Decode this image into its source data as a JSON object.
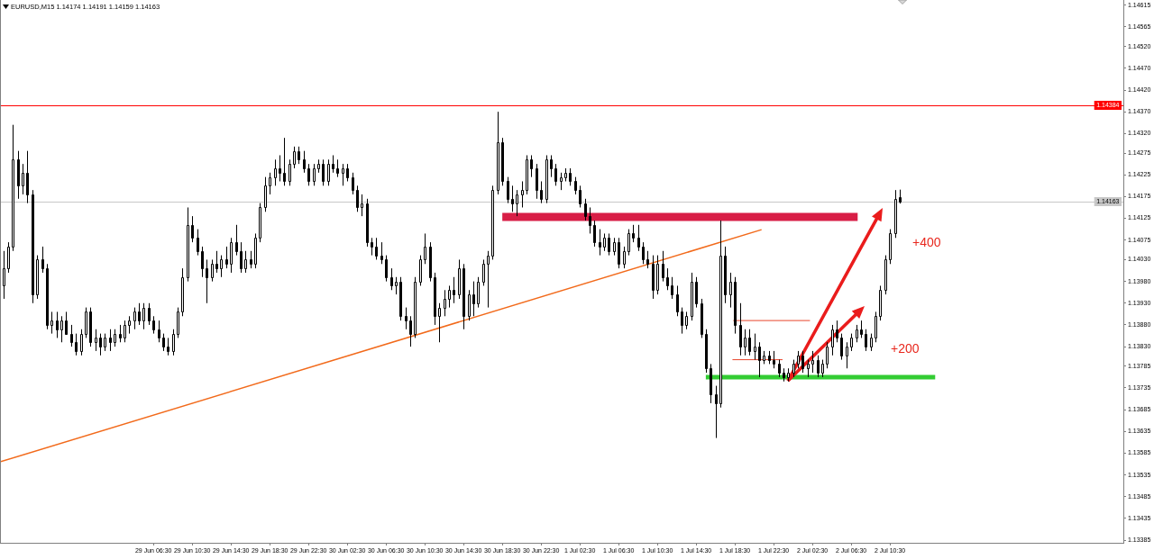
{
  "chart_data": {
    "type": "candlestick",
    "title": "EURUSD,M15 1.14174 1.14191 1.14159 1.14163",
    "color": "#000000",
    "x": [
      "--06-28T15:00",
      "--06-28T15:30",
      "--06-28T16:00",
      "--06-28T16:30",
      "--06-28T17:00",
      "--06-28T17:30",
      "--06-28T18:00",
      "--06-28T18:30",
      "--06-28T19:00",
      "--06-28T19:30",
      "--06-28T20:00",
      "--06-28T20:30",
      "--06-28T21:00",
      "--06-28T21:30",
      "--06-28T22:00",
      "--06-28T22:30",
      "--06-28T23:00",
      "--06-28T23:30",
      "--06-29T00:00",
      "--06-29T00:30",
      "--06-29T01:00",
      "--06-29T01:30",
      "--06-29T02:00",
      "--06-29T02:30",
      "--06-29T03:00",
      "--06-29T03:30",
      "--06-29T04:00",
      "--06-29T04:30",
      "--06-29T05:00",
      "--06-29T05:30",
      "--06-29T06:00",
      "--06-29T06:30",
      "--06-29T07:00",
      "--06-29T07:30",
      "--06-29T08:00",
      "--06-29T08:30",
      "--06-29T09:00",
      "--06-29T09:30",
      "--06-29T10:00",
      "--06-29T10:30",
      "--06-29T11:00",
      "--06-29T11:30",
      "--06-29T12:00",
      "--06-29T12:30",
      "--06-29T13:00",
      "--06-29T13:30",
      "--06-29T14:00",
      "--06-29T14:30",
      "--06-29T15:00",
      "--06-29T15:30",
      "--06-29T16:00",
      "--06-29T16:30",
      "--06-29T17:00",
      "--06-29T17:30",
      "--06-29T18:00",
      "--06-29T18:30",
      "--06-29T19:00",
      "--06-29T19:30",
      "--06-29T20:00",
      "--06-29T20:30",
      "--06-29T21:00",
      "--06-29T21:30",
      "--06-29T22:00",
      "--06-29T22:30",
      "--06-29T23:00",
      "--06-29T23:30",
      "--06-30T00:00",
      "--06-30T00:30",
      "--06-30T01:00",
      "--06-30T01:30",
      "--06-30T02:00",
      "--06-30T02:30",
      "--06-30T03:00",
      "--06-30T03:30",
      "--06-30T04:00",
      "--06-30T04:30",
      "--06-30T05:00",
      "--06-30T05:30",
      "--06-30T06:00",
      "--06-30T06:30",
      "--06-30T07:00",
      "--06-30T07:30",
      "--06-30T08:00",
      "--06-30T08:30",
      "--06-30T09:00",
      "--06-30T09:30",
      "--06-30T10:00",
      "--06-30T10:30",
      "--06-30T11:00",
      "--06-30T11:30",
      "--06-30T12:00",
      "--06-30T12:30",
      "--06-30T13:00",
      "--06-30T13:30",
      "--06-30T14:00",
      "--06-30T14:30",
      "--06-30T15:00",
      "--06-30T15:30",
      "--06-30T16:00",
      "--06-30T16:30",
      "--06-30T17:00",
      "--06-30T17:30",
      "--06-30T18:00",
      "--06-30T18:30",
      "--06-30T19:00",
      "--06-30T19:30",
      "--06-30T20:00",
      "--06-30T20:30",
      "--06-30T21:00",
      "--06-30T21:30",
      "--06-30T22:00",
      "--06-30T22:30",
      "--06-30T23:00",
      "--06-30T23:30",
      "--07-01T00:00",
      "--07-01T00:30",
      "--07-01T01:00",
      "--07-01T01:30",
      "--07-01T02:00",
      "--07-01T02:30",
      "--07-01T03:00",
      "--07-01T03:30",
      "--07-01T04:00",
      "--07-01T04:30",
      "--07-01T05:00",
      "--07-01T05:30",
      "--07-01T06:00",
      "--07-01T06:30",
      "--07-01T07:00",
      "--07-01T07:30",
      "--07-01T08:00",
      "--07-01T08:30",
      "--07-01T09:00",
      "--07-01T09:30",
      "--07-01T10:00",
      "--07-01T10:30",
      "--07-01T11:00",
      "--07-01T11:30",
      "--07-01T12:00",
      "--07-01T12:30",
      "--07-01T13:00",
      "--07-01T13:30",
      "--07-01T14:00",
      "--07-01T14:30",
      "--07-01T15:00",
      "--07-01T15:30",
      "--07-01T16:00",
      "--07-01T16:30",
      "--07-01T17:00",
      "--07-01T17:30",
      "--07-01T18:00",
      "--07-01T18:30",
      "--07-01T19:00",
      "--07-01T19:30",
      "--07-01T20:00",
      "--07-01T20:30",
      "--07-01T21:00",
      "--07-01T21:30",
      "--07-01T22:00",
      "--07-01T22:30",
      "--07-01T23:00",
      "--07-01T23:30",
      "--07-02T00:00",
      "--07-02T00:30",
      "--07-02T01:00",
      "--07-02T01:30",
      "--07-02T02:00",
      "--07-02T02:30",
      "--07-02T03:00",
      "--07-02T03:30",
      "--07-02T04:00",
      "--07-02T04:30",
      "--07-02T05:00",
      "--07-02T05:30",
      "--07-02T06:00",
      "--07-02T06:30",
      "--07-02T07:00",
      "--07-02T07:30",
      "--07-02T08:00",
      "--07-02T08:30",
      "--07-02T09:00",
      "--07-02T09:30",
      "--07-02T10:00",
      "--07-02T10:30",
      "--07-02T11:00",
      "--07-02T11:30"
    ],
    "ohlc": [
      [
        1.1397,
        1.1405,
        1.1394,
        1.1401
      ],
      [
        1.1401,
        1.1407,
        1.14,
        1.1406
      ],
      [
        1.1406,
        1.1434,
        1.1405,
        1.1426
      ],
      [
        1.1426,
        1.1428,
        1.1417,
        1.142
      ],
      [
        1.142,
        1.1425,
        1.1418,
        1.1423
      ],
      [
        1.1423,
        1.1428,
        1.1416,
        1.1418
      ],
      [
        1.1418,
        1.1419,
        1.1393,
        1.1395
      ],
      [
        1.1395,
        1.1404,
        1.1394,
        1.1403
      ],
      [
        1.1403,
        1.1406,
        1.14,
        1.1401
      ],
      [
        1.1401,
        1.1402,
        1.1387,
        1.1388
      ],
      [
        1.1388,
        1.1391,
        1.1386,
        1.1389
      ],
      [
        1.1389,
        1.1391,
        1.1385,
        1.1387
      ],
      [
        1.1387,
        1.139,
        1.1384,
        1.1389
      ],
      [
        1.1389,
        1.1391,
        1.1386,
        1.1386
      ],
      [
        1.1386,
        1.1388,
        1.1383,
        1.1384
      ],
      [
        1.1384,
        1.1386,
        1.1381,
        1.1382
      ],
      [
        1.1382,
        1.1387,
        1.1381,
        1.1386
      ],
      [
        1.1386,
        1.1392,
        1.1385,
        1.1391
      ],
      [
        1.1391,
        1.1392,
        1.1383,
        1.1384
      ],
      [
        1.1384,
        1.1387,
        1.1382,
        1.1385
      ],
      [
        1.1385,
        1.1386,
        1.1381,
        1.1383
      ],
      [
        1.1383,
        1.1386,
        1.1382,
        1.1385
      ],
      [
        1.1385,
        1.1387,
        1.1382,
        1.1384
      ],
      [
        1.1384,
        1.1387,
        1.1383,
        1.1386
      ],
      [
        1.1386,
        1.1388,
        1.1384,
        1.1385
      ],
      [
        1.1385,
        1.1389,
        1.1384,
        1.1388
      ],
      [
        1.1388,
        1.139,
        1.1386,
        1.1389
      ],
      [
        1.1389,
        1.1392,
        1.1387,
        1.1391
      ],
      [
        1.1391,
        1.1393,
        1.1388,
        1.1389
      ],
      [
        1.1389,
        1.1393,
        1.1387,
        1.1392
      ],
      [
        1.1392,
        1.1393,
        1.1388,
        1.1389
      ],
      [
        1.1389,
        1.139,
        1.1386,
        1.1387
      ],
      [
        1.1387,
        1.1389,
        1.1384,
        1.1385
      ],
      [
        1.1385,
        1.1386,
        1.1382,
        1.1383
      ],
      [
        1.1383,
        1.1385,
        1.1381,
        1.1382
      ],
      [
        1.1382,
        1.1387,
        1.1381,
        1.1386
      ],
      [
        1.1386,
        1.1392,
        1.1385,
        1.1391
      ],
      [
        1.1391,
        1.1401,
        1.139,
        1.1399
      ],
      [
        1.1399,
        1.1415,
        1.1398,
        1.1411
      ],
      [
        1.1411,
        1.1413,
        1.1407,
        1.1408
      ],
      [
        1.1408,
        1.141,
        1.1404,
        1.1405
      ],
      [
        1.1405,
        1.1406,
        1.1399,
        1.1401
      ],
      [
        1.1401,
        1.1403,
        1.1393,
        1.1399
      ],
      [
        1.1399,
        1.1403,
        1.1398,
        1.1402
      ],
      [
        1.1402,
        1.1405,
        1.14,
        1.1401
      ],
      [
        1.1401,
        1.1404,
        1.1399,
        1.1403
      ],
      [
        1.1403,
        1.1406,
        1.1401,
        1.1402
      ],
      [
        1.1402,
        1.1408,
        1.14,
        1.1407
      ],
      [
        1.1407,
        1.1411,
        1.1404,
        1.1405
      ],
      [
        1.1405,
        1.1407,
        1.14,
        1.1401
      ],
      [
        1.1401,
        1.1405,
        1.14,
        1.1403
      ],
      [
        1.1403,
        1.1405,
        1.1401,
        1.1402
      ],
      [
        1.1402,
        1.1409,
        1.1401,
        1.1408
      ],
      [
        1.1408,
        1.1416,
        1.1407,
        1.1415
      ],
      [
        1.1415,
        1.1422,
        1.1414,
        1.142
      ],
      [
        1.142,
        1.1423,
        1.1418,
        1.1422
      ],
      [
        1.1422,
        1.1426,
        1.142,
        1.1424
      ],
      [
        1.1424,
        1.1427,
        1.1421,
        1.1423
      ],
      [
        1.1423,
        1.1431,
        1.142,
        1.1421
      ],
      [
        1.1421,
        1.1426,
        1.142,
        1.1425
      ],
      [
        1.1425,
        1.1429,
        1.1424,
        1.1428
      ],
      [
        1.1428,
        1.1429,
        1.1425,
        1.1426
      ],
      [
        1.1426,
        1.1428,
        1.1423,
        1.1424
      ],
      [
        1.1424,
        1.1425,
        1.142,
        1.1421
      ],
      [
        1.1421,
        1.1425,
        1.142,
        1.1424
      ],
      [
        1.1424,
        1.1426,
        1.1423,
        1.1425
      ],
      [
        1.1425,
        1.1426,
        1.142,
        1.1421
      ],
      [
        1.1421,
        1.1426,
        1.142,
        1.1425
      ],
      [
        1.1425,
        1.1427,
        1.1423,
        1.1424
      ],
      [
        1.1424,
        1.1426,
        1.1422,
        1.1423
      ],
      [
        1.1423,
        1.1425,
        1.142,
        1.1424
      ],
      [
        1.1424,
        1.1425,
        1.1421,
        1.1422
      ],
      [
        1.1422,
        1.1423,
        1.1418,
        1.1419
      ],
      [
        1.1419,
        1.142,
        1.1414,
        1.1415
      ],
      [
        1.1415,
        1.1418,
        1.1413,
        1.1416
      ],
      [
        1.1416,
        1.1417,
        1.1406,
        1.1407
      ],
      [
        1.1407,
        1.1408,
        1.1404,
        1.1406
      ],
      [
        1.1406,
        1.1408,
        1.1403,
        1.1404
      ],
      [
        1.1404,
        1.1407,
        1.1402,
        1.1403
      ],
      [
        1.1403,
        1.1404,
        1.1398,
        1.1399
      ],
      [
        1.1399,
        1.1401,
        1.1396,
        1.1397
      ],
      [
        1.1397,
        1.1399,
        1.1395,
        1.1398
      ],
      [
        1.1398,
        1.1399,
        1.1389,
        1.139
      ],
      [
        1.139,
        1.1392,
        1.1387,
        1.1389
      ],
      [
        1.1389,
        1.139,
        1.1383,
        1.1386
      ],
      [
        1.1386,
        1.1399,
        1.1385,
        1.1398
      ],
      [
        1.1398,
        1.1404,
        1.1397,
        1.1403
      ],
      [
        1.1403,
        1.1409,
        1.1402,
        1.1406
      ],
      [
        1.1406,
        1.1407,
        1.1398,
        1.1399
      ],
      [
        1.1399,
        1.14,
        1.1388,
        1.139
      ],
      [
        1.139,
        1.1393,
        1.1384,
        1.1392
      ],
      [
        1.1392,
        1.1396,
        1.139,
        1.1394
      ],
      [
        1.1394,
        1.1397,
        1.1392,
        1.1396
      ],
      [
        1.1396,
        1.1399,
        1.1393,
        1.1395
      ],
      [
        1.1395,
        1.1403,
        1.1394,
        1.1401
      ],
      [
        1.1401,
        1.1402,
        1.1387,
        1.139
      ],
      [
        1.139,
        1.1396,
        1.1389,
        1.1395
      ],
      [
        1.1395,
        1.1398,
        1.139,
        1.1393
      ],
      [
        1.1393,
        1.1399,
        1.1392,
        1.1398
      ],
      [
        1.1398,
        1.1403,
        1.1397,
        1.1402
      ],
      [
        1.1402,
        1.1405,
        1.1392,
        1.1404
      ],
      [
        1.1404,
        1.142,
        1.1403,
        1.1419
      ],
      [
        1.1419,
        1.1437,
        1.1418,
        1.143
      ],
      [
        1.143,
        1.1431,
        1.142,
        1.1421
      ],
      [
        1.1421,
        1.1422,
        1.1416,
        1.1417
      ],
      [
        1.1417,
        1.142,
        1.1414,
        1.1416
      ],
      [
        1.1416,
        1.1419,
        1.1413,
        1.1418
      ],
      [
        1.1418,
        1.1421,
        1.1415,
        1.1419
      ],
      [
        1.1419,
        1.1427,
        1.1418,
        1.1426
      ],
      [
        1.1426,
        1.1427,
        1.1422,
        1.1424
      ],
      [
        1.1424,
        1.1425,
        1.1417,
        1.1419
      ],
      [
        1.1419,
        1.1421,
        1.1416,
        1.1417
      ],
      [
        1.1417,
        1.1427,
        1.1416,
        1.1426
      ],
      [
        1.1426,
        1.1427,
        1.1422,
        1.1424
      ],
      [
        1.1424,
        1.1425,
        1.142,
        1.1421
      ],
      [
        1.1421,
        1.1423,
        1.1419,
        1.1422
      ],
      [
        1.1422,
        1.1424,
        1.1421,
        1.1423
      ],
      [
        1.1423,
        1.1424,
        1.142,
        1.1421
      ],
      [
        1.1421,
        1.1422,
        1.1418,
        1.1419
      ],
      [
        1.1419,
        1.142,
        1.1415,
        1.1416
      ],
      [
        1.1416,
        1.1417,
        1.1412,
        1.1413
      ],
      [
        1.1413,
        1.1415,
        1.1409,
        1.1411
      ],
      [
        1.1411,
        1.1412,
        1.1406,
        1.1407
      ],
      [
        1.1407,
        1.141,
        1.1404,
        1.1406
      ],
      [
        1.1406,
        1.1409,
        1.1405,
        1.1408
      ],
      [
        1.1408,
        1.1409,
        1.1404,
        1.1405
      ],
      [
        1.1405,
        1.1408,
        1.1404,
        1.1407
      ],
      [
        1.1407,
        1.1408,
        1.1401,
        1.1402
      ],
      [
        1.1402,
        1.1406,
        1.1401,
        1.1405
      ],
      [
        1.1405,
        1.141,
        1.1404,
        1.1409
      ],
      [
        1.1409,
        1.1411,
        1.1407,
        1.1408
      ],
      [
        1.1408,
        1.1411,
        1.1405,
        1.1406
      ],
      [
        1.1406,
        1.1407,
        1.1402,
        1.1403
      ],
      [
        1.1403,
        1.1405,
        1.1401,
        1.1402
      ],
      [
        1.1402,
        1.1404,
        1.1394,
        1.1396
      ],
      [
        1.1396,
        1.1404,
        1.1395,
        1.1402
      ],
      [
        1.1402,
        1.1405,
        1.1398,
        1.1399
      ],
      [
        1.1399,
        1.1401,
        1.1396,
        1.1397
      ],
      [
        1.1397,
        1.1399,
        1.1394,
        1.1395
      ],
      [
        1.1395,
        1.1397,
        1.139,
        1.1391
      ],
      [
        1.1391,
        1.1392,
        1.1386,
        1.1388
      ],
      [
        1.1388,
        1.1391,
        1.1387,
        1.139
      ],
      [
        1.139,
        1.14,
        1.1389,
        1.1398
      ],
      [
        1.1398,
        1.1399,
        1.1392,
        1.1393
      ],
      [
        1.1393,
        1.1394,
        1.1385,
        1.1386
      ],
      [
        1.1386,
        1.1387,
        1.1377,
        1.1378
      ],
      [
        1.1378,
        1.1379,
        1.137,
        1.1372
      ],
      [
        1.1372,
        1.1374,
        1.1362,
        1.137
      ],
      [
        1.137,
        1.1412,
        1.1369,
        1.1404
      ],
      [
        1.1404,
        1.1406,
        1.1393,
        1.1395
      ],
      [
        1.1395,
        1.14,
        1.1392,
        1.1398
      ],
      [
        1.1398,
        1.1399,
        1.1386,
        1.1388
      ],
      [
        1.1388,
        1.1393,
        1.1381,
        1.1383
      ],
      [
        1.1383,
        1.1387,
        1.1381,
        1.1385
      ],
      [
        1.1385,
        1.1387,
        1.1381,
        1.1382
      ],
      [
        1.1382,
        1.1386,
        1.138,
        1.1383
      ],
      [
        1.1383,
        1.1384,
        1.1376,
        1.138
      ],
      [
        1.138,
        1.1382,
        1.1379,
        1.1381
      ],
      [
        1.1381,
        1.1382,
        1.1379,
        1.138
      ],
      [
        1.138,
        1.1382,
        1.1378,
        1.1379
      ],
      [
        1.1379,
        1.138,
        1.1376,
        1.1377
      ],
      [
        1.1377,
        1.1378,
        1.1375,
        1.1376
      ],
      [
        1.1376,
        1.1378,
        1.1375,
        1.1377
      ],
      [
        1.1377,
        1.138,
        1.1376,
        1.1379
      ],
      [
        1.1379,
        1.1382,
        1.1378,
        1.1381
      ],
      [
        1.1381,
        1.1382,
        1.1377,
        1.1378
      ],
      [
        1.1378,
        1.138,
        1.1376,
        1.1379
      ],
      [
        1.1379,
        1.1382,
        1.1377,
        1.138
      ],
      [
        1.138,
        1.1381,
        1.1376,
        1.1377
      ],
      [
        1.1377,
        1.138,
        1.1376,
        1.1379
      ],
      [
        1.1379,
        1.1384,
        1.1378,
        1.1383
      ],
      [
        1.1383,
        1.1388,
        1.1381,
        1.1387
      ],
      [
        1.1387,
        1.1389,
        1.1384,
        1.1385
      ],
      [
        1.1385,
        1.1386,
        1.138,
        1.1381
      ],
      [
        1.1381,
        1.1384,
        1.1378,
        1.1383
      ],
      [
        1.1383,
        1.1386,
        1.1382,
        1.1385
      ],
      [
        1.1385,
        1.1388,
        1.1384,
        1.1387
      ],
      [
        1.1387,
        1.1389,
        1.1385,
        1.1386
      ],
      [
        1.1386,
        1.1387,
        1.1382,
        1.1383
      ],
      [
        1.1383,
        1.1386,
        1.1382,
        1.1385
      ],
      [
        1.1385,
        1.1391,
        1.1384,
        1.139
      ],
      [
        1.139,
        1.1397,
        1.1389,
        1.1396
      ],
      [
        1.1396,
        1.1404,
        1.1395,
        1.1403
      ],
      [
        1.1403,
        1.141,
        1.1402,
        1.1409
      ],
      [
        1.1409,
        1.1419,
        1.1408,
        1.1417
      ],
      [
        1.14174,
        1.14191,
        1.14159,
        1.14163
      ]
    ],
    "series": [
      {
        "type": "line",
        "color": "#f26a1b",
        "x": [
          "--06-28T14:40",
          "--07-01T21:15"
        ],
        "values": [
          1.13565,
          1.14099
        ]
      },
      {
        "type": "line",
        "color": "#d81e46",
        "x": [
          "--06-30T18:30",
          "--07-02T07:10"
        ],
        "values": [
          1.14128,
          1.14128
        ]
      },
      {
        "type": "line",
        "color": "#33cc33",
        "x": [
          "--07-01T15:30",
          "--07-02T15:10"
        ],
        "values": [
          1.1376,
          1.1376
        ]
      },
      {
        "type": "line",
        "color": "#e8452c",
        "x": [
          "--07-01T18:20",
          "--07-02T02:15"
        ],
        "values": [
          1.1389,
          1.1389
        ]
      },
      {
        "type": "line",
        "color": "#e8452c",
        "x": [
          "--07-01T18:15",
          "--07-01T23:25"
        ],
        "values": [
          1.138,
          1.138
        ]
      }
    ],
    "xlim": [
      "--06-28T14:40",
      "--07-03T10:35"
    ],
    "xticks": [
      {
        "value": "--06-29T06:30",
        "label": "29 Jun 06:30"
      },
      {
        "value": "--06-29T10:30",
        "label": "29 Jun 10:30"
      },
      {
        "value": "--06-29T14:30",
        "label": "29 Jun 14:30"
      },
      {
        "value": "--06-29T18:30",
        "label": "29 Jun 18:30"
      },
      {
        "value": "--06-29T22:30",
        "label": "29 Jun 22:30"
      },
      {
        "value": "--06-30T02:30",
        "label": "30 Jun 02:30"
      },
      {
        "value": "--06-30T06:30",
        "label": "30 Jun 06:30"
      },
      {
        "value": "--06-30T10:30",
        "label": "30 Jun 10:30"
      },
      {
        "value": "--06-30T14:30",
        "label": "30 Jun 14:30"
      },
      {
        "value": "--06-30T18:30",
        "label": "30 Jun 18:30"
      },
      {
        "value": "--06-30T22:30",
        "label": "30 Jun 22:30"
      },
      {
        "value": "--07-01T02:30",
        "label": "1 Jul 02:30"
      },
      {
        "value": "--07-01T06:30",
        "label": "1 Jul 06:30"
      },
      {
        "value": "--07-01T10:30",
        "label": "1 Jul 10:30"
      },
      {
        "value": "--07-01T14:30",
        "label": "1 Jul 14:30"
      },
      {
        "value": "--07-01T18:30",
        "label": "1 Jul 18:30"
      },
      {
        "value": "--07-01T22:30",
        "label": "1 Jul 22:30"
      },
      {
        "value": "--07-02T02:30",
        "label": "2 Jul 02:30"
      },
      {
        "value": "--07-02T06:30",
        "label": "2 Jul 06:30"
      },
      {
        "value": "--07-02T10:30",
        "label": "2 Jul 10:30"
      }
    ],
    "ylim": [
      1.13379,
      1.14627
    ],
    "yticks": [
      1.13385,
      1.13435,
      1.13485,
      1.13535,
      1.13585,
      1.13635,
      1.13685,
      1.13735,
      1.13785,
      {
        "value": 1.1383,
        "label": "1.13830"
      },
      {
        "value": 1.1388,
        "label": "1.13880"
      },
      {
        "value": 1.1393,
        "label": "1.13930"
      },
      {
        "value": 1.1398,
        "label": "1.13980"
      },
      {
        "value": 1.1403,
        "label": "1.14030"
      },
      1.14075,
      1.14125,
      1.14175,
      1.14225,
      1.14275,
      {
        "value": 1.1432,
        "label": "1.14320"
      },
      {
        "value": 1.1437,
        "label": "1.14370"
      },
      {
        "value": 1.1442,
        "label": "1.14420"
      },
      {
        "value": 1.1447,
        "label": "1.14470"
      },
      {
        "value": 1.1452,
        "label": "1.14520"
      },
      1.14565,
      1.14615
    ],
    "ref_lines": [
      {
        "axis": "y",
        "value": 1.14384,
        "label": "1.14384",
        "color": "#ff0000"
      },
      {
        "axis": "y",
        "value": 1.14163,
        "label": "1.14163",
        "color": "#c8c8c8"
      }
    ],
    "annotations": [
      "+400",
      "+200"
    ]
  }
}
